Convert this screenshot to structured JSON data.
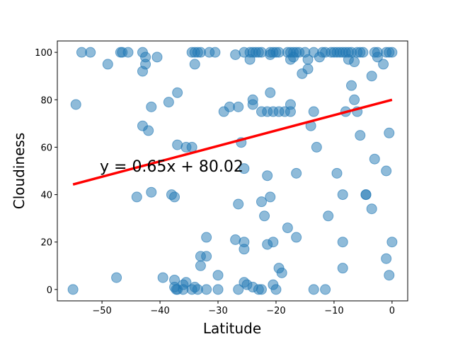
{
  "chart_data": {
    "type": "scatter",
    "x_label": "Latitude",
    "y_label": "Cloudiness",
    "color": "#1f77b4",
    "x": [
      -53.5,
      -52,
      -46.8,
      -46.5,
      -45.5,
      -43,
      -34.5,
      -34,
      -33.5,
      -33,
      -31.5,
      -30.5,
      -25.5,
      -24.5,
      -24,
      -23.5,
      -23,
      -22.5,
      -21,
      -20.5,
      -20,
      -19.5,
      -18,
      -17.5,
      -17,
      -16.5,
      -16,
      -15,
      -13.5,
      -12,
      -11.5,
      -10.5,
      -10,
      -9.5,
      -9,
      -8.5,
      -8,
      -7.5,
      -7,
      -6,
      -5.5,
      -5,
      -3,
      -2.5,
      -1,
      0,
      -49,
      -42.5,
      -42.5,
      -43,
      -40.5,
      -34,
      -27,
      -24.5,
      -21,
      -17.5,
      -17,
      -15.5,
      -14.5,
      -14.5,
      -12.5,
      -7.5,
      -6.5,
      -3.5,
      -2.5,
      -1.5,
      -0.5,
      -54.5,
      -41.5,
      -38.5,
      -37,
      -43,
      -42,
      -29,
      -28,
      -26.5,
      -24,
      -24,
      -22.5,
      -21.5,
      -21,
      -20.5,
      -19.5,
      -18.5,
      -17.5,
      -17.5,
      -13.5,
      -7,
      -6.5,
      -8,
      -6,
      -5.5,
      -14,
      -13,
      -0.5,
      -37,
      -35.5,
      -34.5,
      -26,
      -25.5,
      -21.5,
      -16.5,
      -9.5,
      -3,
      -1,
      -44,
      -41.5,
      -38,
      -37.5,
      -26.5,
      -21,
      -22.5,
      -8.5,
      -4.5,
      -4.5,
      -3.5,
      -11,
      -22,
      -18,
      -16.5,
      -32,
      -27,
      -25.5,
      -21.5,
      -20.5,
      -8.5,
      0,
      -25.5,
      -33,
      -32,
      -1,
      -33,
      -8.5,
      -19.5,
      -19,
      -47.5,
      -39.5,
      -37.5,
      -30,
      -0.5,
      -25.5,
      -25,
      -24,
      -35.5,
      -36,
      -37.5,
      -20.5,
      -55,
      -37,
      -37.2,
      -36,
      -34.5,
      -34,
      -33.5,
      -32,
      -30,
      -26.5,
      -23,
      -22.5,
      -20,
      -13.5,
      -11.5
    ],
    "values": [
      100,
      100,
      100,
      100,
      100,
      100,
      100,
      100,
      100,
      100,
      100,
      100,
      100,
      100,
      100,
      100,
      100,
      100,
      100,
      100,
      100,
      100,
      100,
      100,
      100,
      100,
      100,
      100,
      100,
      100,
      100,
      100,
      100,
      100,
      100,
      100,
      100,
      100,
      100,
      100,
      100,
      100,
      100,
      100,
      100,
      100,
      95,
      98,
      95,
      92,
      98,
      95,
      99,
      97,
      99,
      97,
      98,
      91,
      93,
      97,
      98,
      97,
      96,
      90,
      98,
      95,
      100,
      78,
      77,
      79,
      83,
      69,
      67,
      75,
      77,
      77,
      80,
      78,
      75,
      75,
      83,
      75,
      75,
      75,
      78,
      75,
      75,
      86,
      80,
      75,
      75,
      65,
      69,
      60,
      66,
      61,
      60,
      60,
      62,
      51,
      48,
      49,
      49,
      55,
      50,
      39,
      41,
      40,
      39,
      36,
      39,
      37,
      40,
      40,
      40,
      34,
      31,
      31,
      26,
      22,
      22,
      21,
      20,
      19,
      20,
      20,
      20,
      17,
      14,
      14,
      13,
      10,
      9,
      9,
      7,
      5,
      5,
      4,
      6,
      6,
      3,
      2,
      1,
      3,
      2,
      1,
      2,
      0,
      0,
      0,
      0,
      0,
      1,
      0,
      0,
      0,
      0,
      0,
      0,
      0,
      0,
      0
    ],
    "fit": {
      "x": [
        -55,
        0
      ],
      "values": [
        44.3,
        80.0
      ],
      "color": "#ff0000",
      "label": "y = 0.65x + 80.02"
    },
    "xlim": [
      -57.7,
      2.7
    ],
    "ylim": [
      -4.8,
      104.8
    ],
    "xticks": [
      {
        "value": -50,
        "label": "−50"
      },
      {
        "value": -40,
        "label": "−40"
      },
      {
        "value": -30,
        "label": "−30"
      },
      {
        "value": -20,
        "label": "−20"
      },
      {
        "value": -10,
        "label": "−10"
      },
      0
    ],
    "yticks": [
      0,
      20,
      40,
      60,
      80,
      100
    ]
  }
}
